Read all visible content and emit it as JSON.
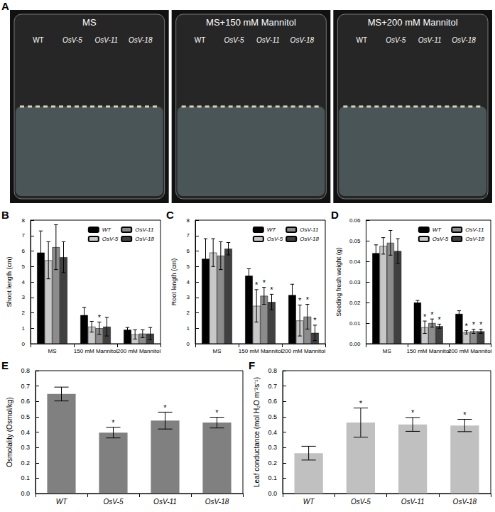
{
  "panel_a": {
    "panel": "A",
    "plates": [
      {
        "title": "MS",
        "lanes": [
          "WT",
          "OsV-5",
          "OsV-11",
          "OsV-18"
        ]
      },
      {
        "title": "MS+150 mM Mannitol",
        "lanes": [
          "WT",
          "OsV-5",
          "OsV-11",
          "OsV-18"
        ]
      },
      {
        "title": "MS+200 mM Mannitol",
        "lanes": [
          "WT",
          "OsV-5",
          "OsV-11",
          "OsV-18"
        ]
      }
    ]
  },
  "chart_data": [
    {
      "panel": "B",
      "type": "bar",
      "y_label": "Shoot length (cm)",
      "categories": [
        "MS",
        "150 mM Mannitol",
        "200 mM Mannitol"
      ],
      "series": [
        {
          "name": "WT",
          "color": "#000000",
          "values": [
            5.9,
            1.85,
            0.9
          ],
          "errors": [
            1.4,
            0.5,
            0.15
          ],
          "significance": [
            null,
            null,
            null
          ]
        },
        {
          "name": "OsV-5",
          "color": "#c8c8c8",
          "values": [
            5.4,
            1.1,
            0.6
          ],
          "errors": [
            1.2,
            0.35,
            0.3
          ],
          "significance": [
            null,
            null,
            null
          ]
        },
        {
          "name": "OsV-11",
          "color": "#8c8c8c",
          "values": [
            6.25,
            1.0,
            0.65
          ],
          "errors": [
            1.45,
            0.4,
            0.25
          ],
          "significance": [
            null,
            "*",
            null
          ]
        },
        {
          "name": "OsV-18",
          "color": "#404040",
          "values": [
            5.6,
            1.1,
            0.65
          ],
          "errors": [
            1.0,
            0.6,
            0.4
          ],
          "significance": [
            null,
            null,
            null
          ]
        }
      ],
      "ylim": [
        0,
        8
      ],
      "yticks": [
        0,
        1,
        2,
        3,
        4,
        5,
        6,
        7,
        8
      ],
      "grid": false,
      "legend": "upper right"
    },
    {
      "panel": "C",
      "type": "bar",
      "y_label": "Root length (cm)",
      "categories": [
        "MS",
        "150 mM Mannitol",
        "200 mM Mannitol"
      ],
      "series": [
        {
          "name": "WT",
          "color": "#000000",
          "values": [
            5.5,
            4.4,
            3.15
          ],
          "errors": [
            1.3,
            0.45,
            0.7
          ],
          "significance": [
            null,
            null,
            null
          ]
        },
        {
          "name": "OsV-5",
          "color": "#c8c8c8",
          "values": [
            5.9,
            2.45,
            1.5
          ],
          "errors": [
            0.9,
            1.05,
            1.0
          ],
          "significance": [
            null,
            "*",
            "*"
          ]
        },
        {
          "name": "OsV-11",
          "color": "#8c8c8c",
          "values": [
            5.7,
            3.1,
            1.75
          ],
          "errors": [
            0.9,
            0.55,
            0.8
          ],
          "significance": [
            null,
            "*",
            "*"
          ]
        },
        {
          "name": "OsV-18",
          "color": "#404040",
          "values": [
            6.15,
            2.7,
            0.7
          ],
          "errors": [
            0.4,
            0.5,
            0.5
          ],
          "significance": [
            null,
            "*",
            "*"
          ]
        }
      ],
      "ylim": [
        0,
        8
      ],
      "yticks": [
        0,
        1,
        2,
        3,
        4,
        5,
        6,
        7,
        8
      ],
      "grid": false,
      "legend": "upper right"
    },
    {
      "panel": "D",
      "type": "bar",
      "y_label": "Seeding fresh weight (g)",
      "categories": [
        "MS",
        "150 mM Mannitol",
        "200 mM Mannitol"
      ],
      "series": [
        {
          "name": "WT",
          "color": "#000000",
          "values": [
            0.044,
            0.02,
            0.0145
          ],
          "errors": [
            0.004,
            0.001,
            0.0015
          ],
          "significance": [
            null,
            null,
            null
          ]
        },
        {
          "name": "OsV-5",
          "color": "#c8c8c8",
          "values": [
            0.0475,
            0.008,
            0.0055
          ],
          "errors": [
            0.004,
            0.003,
            0.0008
          ],
          "significance": [
            null,
            "*",
            "*"
          ]
        },
        {
          "name": "OsV-11",
          "color": "#8c8c8c",
          "values": [
            0.049,
            0.01,
            0.006
          ],
          "errors": [
            0.006,
            0.002,
            0.001
          ],
          "significance": [
            null,
            "*",
            "*"
          ]
        },
        {
          "name": "OsV-18",
          "color": "#404040",
          "values": [
            0.045,
            0.0085,
            0.006
          ],
          "errors": [
            0.006,
            0.001,
            0.001
          ],
          "significance": [
            null,
            "*",
            "*"
          ]
        }
      ],
      "ylim": [
        0,
        0.06
      ],
      "yticks": [
        {
          "value": 0,
          "label": "0.00"
        },
        {
          "value": 0.01,
          "label": "0.01"
        },
        {
          "value": 0.02,
          "label": "0.02"
        },
        {
          "value": 0.03,
          "label": "0.03"
        },
        {
          "value": 0.04,
          "label": "0.04"
        },
        {
          "value": 0.05,
          "label": "0.05"
        },
        {
          "value": 0.06,
          "label": "0.06"
        }
      ],
      "grid": false,
      "legend": "upper right"
    },
    {
      "panel": "E",
      "type": "bar",
      "y_label": "Osmolality (Osmol/kg)",
      "categories": [
        "WT",
        "OsV-5",
        "OsV-11",
        "OsV-18"
      ],
      "values": [
        0.648,
        0.397,
        0.475,
        0.462
      ],
      "errors": [
        0.045,
        0.035,
        0.055,
        0.035
      ],
      "significance": [
        null,
        "*",
        "*",
        "*"
      ],
      "color": "#808080",
      "ylim": [
        0,
        0.8
      ],
      "yticks": [
        {
          "value": 0,
          "label": "0.0"
        },
        {
          "value": 0.1,
          "label": "0.1"
        },
        {
          "value": 0.2,
          "label": "0.2"
        },
        {
          "value": 0.3,
          "label": "0.3"
        },
        {
          "value": 0.4,
          "label": "0.4"
        },
        {
          "value": 0.5,
          "label": "0.5"
        },
        {
          "value": 0.6,
          "label": "0.6"
        },
        {
          "value": 0.7,
          "label": "0.7"
        },
        {
          "value": 0.8,
          "label": "0.8"
        }
      ],
      "grid": false
    },
    {
      "panel": "F",
      "type": "bar",
      "y_label": "Leaf conductance (mol H₂O m⁻²s⁻¹)",
      "categories": [
        "WT",
        "OsV-5",
        "OsV-11",
        "OsV-18"
      ],
      "values": [
        0.263,
        0.462,
        0.45,
        0.443
      ],
      "errors": [
        0.045,
        0.095,
        0.045,
        0.04
      ],
      "significance": [
        null,
        "*",
        "*",
        "*"
      ],
      "color": "#c0c0c0",
      "ylim": [
        0,
        0.8
      ],
      "yticks": [
        {
          "value": 0,
          "label": "0.0"
        },
        {
          "value": 0.1,
          "label": "0.1"
        },
        {
          "value": 0.2,
          "label": "0.2"
        },
        {
          "value": 0.3,
          "label": "0.3"
        },
        {
          "value": 0.4,
          "label": "0.4"
        },
        {
          "value": 0.5,
          "label": "0.5"
        },
        {
          "value": 0.6,
          "label": "0.6"
        },
        {
          "value": 0.7,
          "label": "0.7"
        },
        {
          "value": 0.8,
          "label": "0.8"
        }
      ],
      "grid": false
    }
  ]
}
